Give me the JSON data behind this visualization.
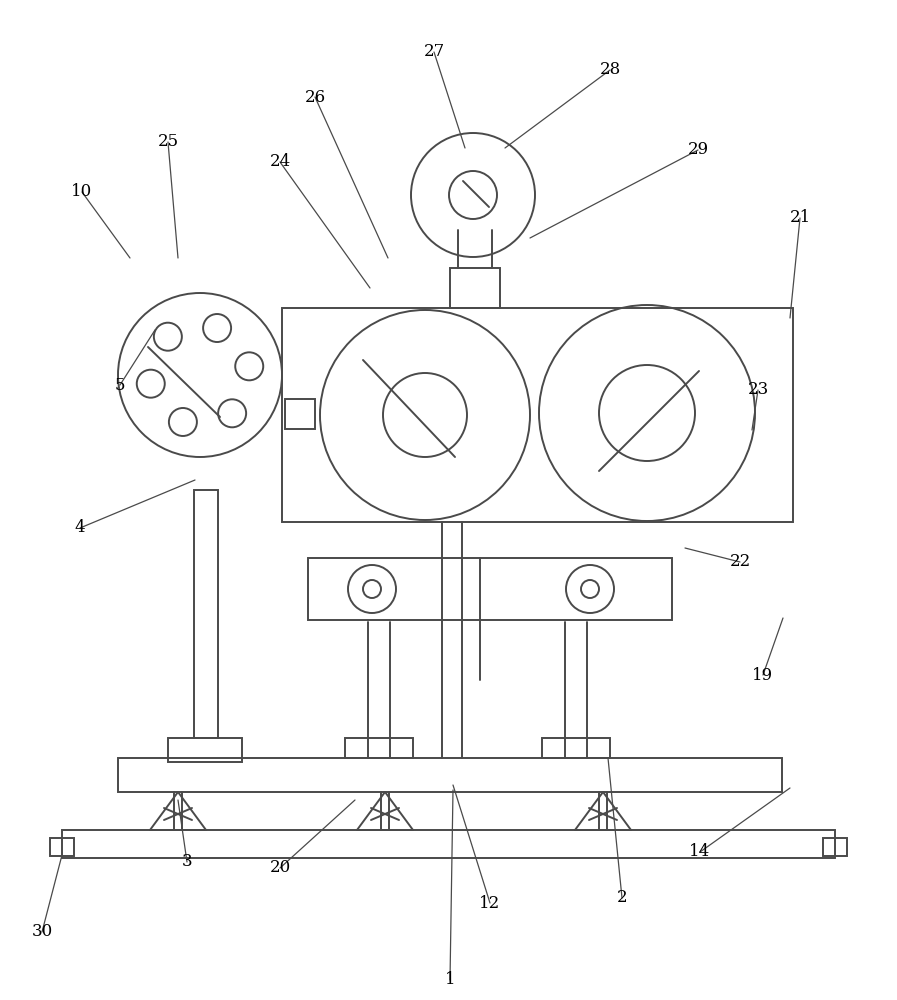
{
  "bg_color": "#ffffff",
  "lc": "#4a4a4a",
  "lw": 1.4,
  "labels": [
    [
      "1",
      450,
      980
    ],
    [
      "2",
      622,
      898
    ],
    [
      "3",
      187,
      862
    ],
    [
      "4",
      80,
      528
    ],
    [
      "5",
      120,
      385
    ],
    [
      "10",
      82,
      192
    ],
    [
      "12",
      490,
      903
    ],
    [
      "14",
      700,
      852
    ],
    [
      "19",
      763,
      675
    ],
    [
      "20",
      280,
      868
    ],
    [
      "21",
      800,
      218
    ],
    [
      "22",
      740,
      562
    ],
    [
      "23",
      758,
      390
    ],
    [
      "24",
      280,
      162
    ],
    [
      "25",
      168,
      142
    ],
    [
      "26",
      315,
      97
    ],
    [
      "27",
      434,
      52
    ],
    [
      "28",
      610,
      70
    ],
    [
      "29",
      698,
      150
    ],
    [
      "30",
      42,
      932
    ]
  ],
  "leader_lines": [
    [
      450,
      980,
      453,
      790
    ],
    [
      622,
      898,
      608,
      758
    ],
    [
      187,
      862,
      178,
      800
    ],
    [
      80,
      528,
      195,
      480
    ],
    [
      120,
      385,
      155,
      330
    ],
    [
      82,
      192,
      130,
      258
    ],
    [
      490,
      903,
      453,
      785
    ],
    [
      700,
      852,
      790,
      788
    ],
    [
      763,
      675,
      783,
      618
    ],
    [
      280,
      868,
      355,
      800
    ],
    [
      800,
      218,
      790,
      318
    ],
    [
      740,
      562,
      685,
      548
    ],
    [
      758,
      390,
      752,
      430
    ],
    [
      280,
      162,
      370,
      288
    ],
    [
      168,
      142,
      178,
      258
    ],
    [
      315,
      97,
      388,
      258
    ],
    [
      434,
      52,
      465,
      148
    ],
    [
      610,
      70,
      505,
      148
    ],
    [
      698,
      150,
      530,
      238
    ],
    [
      42,
      932,
      62,
      855
    ]
  ]
}
